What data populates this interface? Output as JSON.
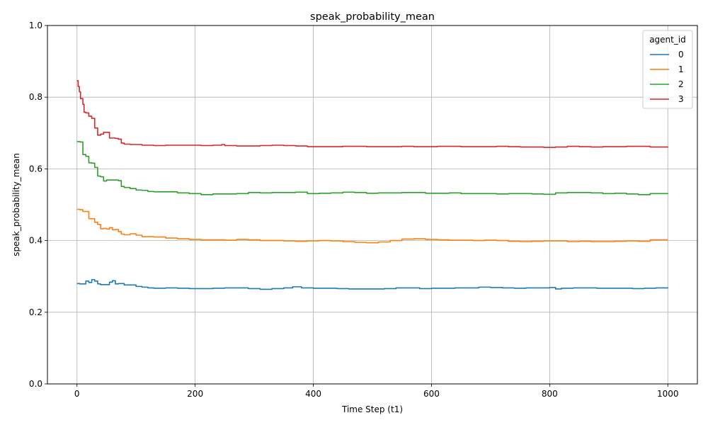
{
  "chart_data": {
    "type": "line",
    "title": "speak_probability_mean",
    "xlabel": "Time Step (t1)",
    "ylabel": "speak_probability_mean",
    "xlim": [
      -50,
      1050
    ],
    "ylim": [
      0.0,
      1.0
    ],
    "xticks": [
      0,
      200,
      400,
      600,
      800,
      1000
    ],
    "yticks": [
      0.0,
      0.2,
      0.4,
      0.6,
      0.8,
      1.0
    ],
    "xtick_labels": [
      "0",
      "200",
      "400",
      "600",
      "800",
      "1000"
    ],
    "ytick_labels": [
      "0.0",
      "0.2",
      "0.4",
      "0.6",
      "0.8",
      "1.0"
    ],
    "grid": true,
    "legend": {
      "title": "agent_id",
      "placement": "top-right"
    },
    "series": [
      {
        "name": "0",
        "color": "#1f77b4",
        "x": [
          0,
          5,
          10,
          15,
          20,
          25,
          30,
          35,
          40,
          50,
          55,
          60,
          65,
          70,
          80,
          90,
          100,
          110,
          120,
          130,
          150,
          170,
          190,
          210,
          230,
          250,
          270,
          290,
          310,
          330,
          350,
          365,
          380,
          400,
          420,
          440,
          460,
          480,
          500,
          520,
          540,
          560,
          580,
          600,
          620,
          640,
          660,
          680,
          700,
          720,
          740,
          760,
          780,
          800,
          810,
          820,
          840,
          860,
          880,
          900,
          920,
          940,
          960,
          980,
          1000
        ],
        "y": [
          0.28,
          0.279,
          0.279,
          0.287,
          0.283,
          0.291,
          0.287,
          0.279,
          0.277,
          0.277,
          0.284,
          0.288,
          0.279,
          0.28,
          0.276,
          0.276,
          0.272,
          0.27,
          0.268,
          0.267,
          0.268,
          0.267,
          0.266,
          0.266,
          0.267,
          0.268,
          0.268,
          0.266,
          0.264,
          0.266,
          0.268,
          0.271,
          0.268,
          0.267,
          0.267,
          0.266,
          0.265,
          0.265,
          0.265,
          0.266,
          0.268,
          0.268,
          0.266,
          0.267,
          0.267,
          0.268,
          0.268,
          0.27,
          0.269,
          0.268,
          0.267,
          0.268,
          0.268,
          0.269,
          0.265,
          0.267,
          0.268,
          0.268,
          0.267,
          0.267,
          0.267,
          0.266,
          0.267,
          0.268,
          0.269
        ]
      },
      {
        "name": "1",
        "color": "#ff7f0e",
        "x": [
          0,
          5,
          10,
          15,
          20,
          25,
          30,
          35,
          40,
          45,
          50,
          55,
          60,
          65,
          70,
          75,
          80,
          90,
          100,
          110,
          130,
          150,
          170,
          190,
          210,
          230,
          250,
          270,
          290,
          310,
          330,
          350,
          370,
          390,
          410,
          430,
          450,
          470,
          490,
          510,
          530,
          550,
          570,
          590,
          610,
          630,
          650,
          670,
          690,
          710,
          730,
          750,
          770,
          790,
          810,
          830,
          850,
          870,
          890,
          910,
          930,
          950,
          970,
          1000
        ],
        "y": [
          0.487,
          0.486,
          0.481,
          0.481,
          0.461,
          0.461,
          0.451,
          0.445,
          0.433,
          0.434,
          0.432,
          0.436,
          0.43,
          0.431,
          0.425,
          0.418,
          0.416,
          0.419,
          0.415,
          0.411,
          0.41,
          0.407,
          0.405,
          0.403,
          0.402,
          0.402,
          0.401,
          0.403,
          0.402,
          0.4,
          0.4,
          0.399,
          0.398,
          0.399,
          0.4,
          0.399,
          0.397,
          0.395,
          0.394,
          0.396,
          0.4,
          0.404,
          0.405,
          0.403,
          0.402,
          0.401,
          0.401,
          0.4,
          0.401,
          0.4,
          0.398,
          0.397,
          0.398,
          0.399,
          0.399,
          0.397,
          0.398,
          0.397,
          0.397,
          0.398,
          0.399,
          0.398,
          0.402,
          0.402
        ]
      },
      {
        "name": "2",
        "color": "#2ca02c",
        "x": [
          0,
          5,
          10,
          15,
          20,
          25,
          30,
          35,
          40,
          45,
          50,
          55,
          60,
          65,
          70,
          75,
          80,
          90,
          100,
          110,
          120,
          130,
          150,
          170,
          190,
          210,
          230,
          250,
          270,
          290,
          310,
          330,
          350,
          370,
          390,
          410,
          430,
          450,
          470,
          490,
          510,
          530,
          550,
          570,
          590,
          610,
          630,
          650,
          670,
          690,
          710,
          730,
          750,
          770,
          790,
          810,
          830,
          850,
          870,
          890,
          910,
          930,
          950,
          970,
          1000
        ],
        "y": [
          0.676,
          0.675,
          0.64,
          0.635,
          0.617,
          0.616,
          0.604,
          0.58,
          0.578,
          0.566,
          0.569,
          0.569,
          0.569,
          0.569,
          0.567,
          0.551,
          0.548,
          0.545,
          0.541,
          0.54,
          0.537,
          0.536,
          0.536,
          0.533,
          0.531,
          0.528,
          0.53,
          0.53,
          0.531,
          0.534,
          0.533,
          0.534,
          0.534,
          0.535,
          0.531,
          0.532,
          0.533,
          0.535,
          0.534,
          0.532,
          0.533,
          0.533,
          0.534,
          0.534,
          0.532,
          0.532,
          0.533,
          0.531,
          0.531,
          0.531,
          0.53,
          0.531,
          0.531,
          0.53,
          0.529,
          0.533,
          0.534,
          0.534,
          0.533,
          0.531,
          0.532,
          0.53,
          0.528,
          0.531,
          0.532
        ]
      },
      {
        "name": "3",
        "color": "#d62728",
        "x": [
          0,
          2,
          4,
          6,
          10,
          12,
          15,
          20,
          25,
          30,
          35,
          40,
          45,
          50,
          55,
          60,
          65,
          70,
          75,
          80,
          90,
          100,
          110,
          130,
          150,
          170,
          190,
          210,
          230,
          245,
          250,
          270,
          290,
          310,
          330,
          350,
          370,
          390,
          410,
          430,
          450,
          470,
          490,
          510,
          530,
          550,
          570,
          590,
          610,
          630,
          650,
          670,
          690,
          710,
          730,
          750,
          770,
          790,
          810,
          830,
          850,
          870,
          890,
          910,
          930,
          950,
          970,
          1000
        ],
        "y": [
          0.846,
          0.83,
          0.815,
          0.796,
          0.78,
          0.758,
          0.756,
          0.747,
          0.741,
          0.714,
          0.694,
          0.697,
          0.702,
          0.702,
          0.686,
          0.686,
          0.685,
          0.683,
          0.672,
          0.669,
          0.668,
          0.668,
          0.666,
          0.665,
          0.666,
          0.666,
          0.666,
          0.665,
          0.666,
          0.668,
          0.665,
          0.664,
          0.664,
          0.665,
          0.666,
          0.665,
          0.664,
          0.662,
          0.662,
          0.662,
          0.663,
          0.663,
          0.662,
          0.662,
          0.662,
          0.663,
          0.662,
          0.662,
          0.663,
          0.663,
          0.662,
          0.662,
          0.662,
          0.663,
          0.662,
          0.661,
          0.661,
          0.66,
          0.661,
          0.663,
          0.662,
          0.661,
          0.662,
          0.662,
          0.663,
          0.663,
          0.661,
          0.662
        ]
      }
    ]
  }
}
